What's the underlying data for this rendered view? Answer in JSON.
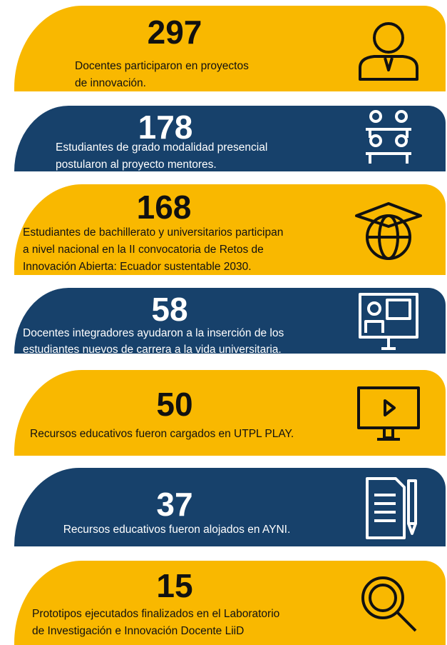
{
  "items": [
    {
      "number": "297",
      "lines": [
        "Docentes participaron en proyectos",
        "de innovación."
      ]
    },
    {
      "number": "178",
      "lines": [
        "Estudiantes de grado modalidad presencial",
        "postularon al proyecto mentores."
      ]
    },
    {
      "number": "168",
      "lines": [
        "Estudiantes de bachillerato y universitarios participan",
        "a nivel nacional en la II convocatoria de Retos de",
        "Innovación Abierta: Ecuador sustentable 2030."
      ]
    },
    {
      "number": "58",
      "lines": [
        "Docentes integradores ayudaron a la inserción de los",
        "estudiantes nuevos de carrera a la vida universitaria."
      ]
    },
    {
      "number": "50",
      "lines": [
        "Recursos educativos fueron cargados en UTPL PLAY."
      ]
    },
    {
      "number": "37",
      "lines": [
        "Recursos educativos fueron alojados en AYNI."
      ]
    },
    {
      "number": "15",
      "lines": [
        "Prototipos ejecutados finalizados en el Laboratorio",
        "de Investigación e Innovación Docente LiiD"
      ]
    }
  ]
}
